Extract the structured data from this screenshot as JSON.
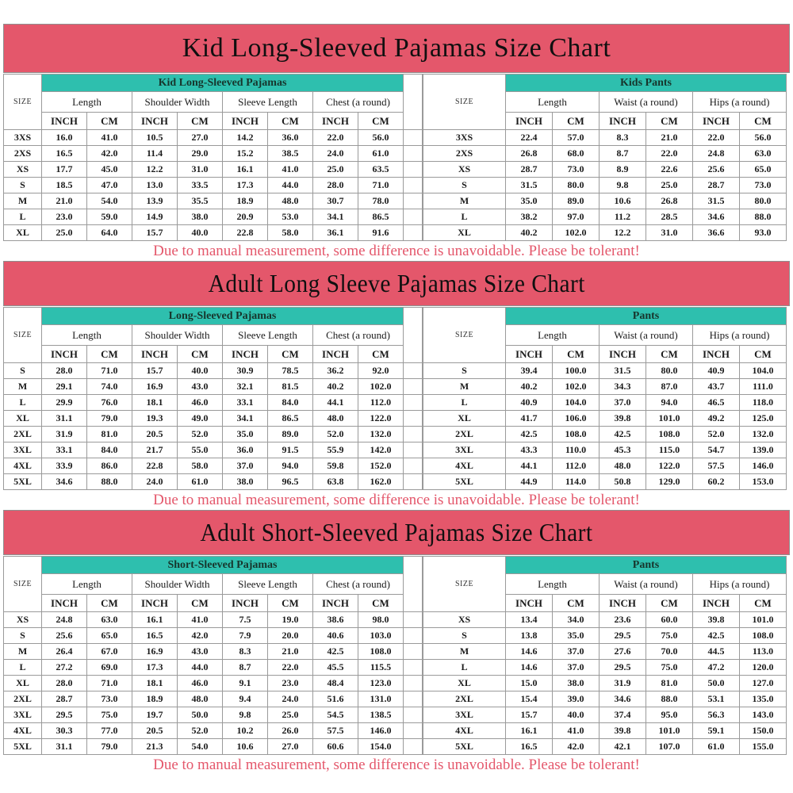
{
  "colors": {
    "banner": "#e4576b",
    "teal": "#2ebfae",
    "disclaimer_text": "#e4576b",
    "title_text": "#101010",
    "grid_line": "#9a9a9a"
  },
  "labels": {
    "size": "SIZE",
    "inch": "INCH",
    "cm": "CM"
  },
  "disclaimer": "Due to manual measurement, some difference is unavoidable. Please be tolerant!",
  "sections": [
    {
      "title": "Kid Long-Sleeved Pajamas Size Chart",
      "left": {
        "slug": "kid-long-sleeved-pajamas",
        "header": "Kid Long-Sleeved Pajamas",
        "groups": [
          "Length",
          "Shoulder Width",
          "Sleeve Length",
          "Chest (a round)"
        ],
        "rows": [
          [
            "3XS",
            "16.0",
            "41.0",
            "10.5",
            "27.0",
            "14.2",
            "36.0",
            "22.0",
            "56.0"
          ],
          [
            "2XS",
            "16.5",
            "42.0",
            "11.4",
            "29.0",
            "15.2",
            "38.5",
            "24.0",
            "61.0"
          ],
          [
            "XS",
            "17.7",
            "45.0",
            "12.2",
            "31.0",
            "16.1",
            "41.0",
            "25.0",
            "63.5"
          ],
          [
            "S",
            "18.5",
            "47.0",
            "13.0",
            "33.5",
            "17.3",
            "44.0",
            "28.0",
            "71.0"
          ],
          [
            "M",
            "21.0",
            "54.0",
            "13.9",
            "35.5",
            "18.9",
            "48.0",
            "30.7",
            "78.0"
          ],
          [
            "L",
            "23.0",
            "59.0",
            "14.9",
            "38.0",
            "20.9",
            "53.0",
            "34.1",
            "86.5"
          ],
          [
            "XL",
            "25.0",
            "64.0",
            "15.7",
            "40.0",
            "22.8",
            "58.0",
            "36.1",
            "91.6"
          ]
        ]
      },
      "right": {
        "slug": "kids-pants",
        "header": "Kids Pants",
        "groups": [
          "Length",
          "Waist (a round)",
          "Hips (a round)"
        ],
        "rows": [
          [
            "3XS",
            "22.4",
            "57.0",
            "8.3",
            "21.0",
            "22.0",
            "56.0"
          ],
          [
            "2XS",
            "26.8",
            "68.0",
            "8.7",
            "22.0",
            "24.8",
            "63.0"
          ],
          [
            "XS",
            "28.7",
            "73.0",
            "8.9",
            "22.6",
            "25.6",
            "65.0"
          ],
          [
            "S",
            "31.5",
            "80.0",
            "9.8",
            "25.0",
            "28.7",
            "73.0"
          ],
          [
            "M",
            "35.0",
            "89.0",
            "10.6",
            "26.8",
            "31.5",
            "80.0"
          ],
          [
            "L",
            "38.2",
            "97.0",
            "11.2",
            "28.5",
            "34.6",
            "88.0"
          ],
          [
            "XL",
            "40.2",
            "102.0",
            "12.2",
            "31.0",
            "36.6",
            "93.0"
          ]
        ]
      }
    },
    {
      "title": "Adult Long Sleeve Pajamas Size Chart",
      "left": {
        "slug": "long-sleeved-pajamas",
        "header": "Long-Sleeved Pajamas",
        "groups": [
          "Length",
          "Shoulder Width",
          "Sleeve Length",
          "Chest (a round)"
        ],
        "rows": [
          [
            "S",
            "28.0",
            "71.0",
            "15.7",
            "40.0",
            "30.9",
            "78.5",
            "36.2",
            "92.0"
          ],
          [
            "M",
            "29.1",
            "74.0",
            "16.9",
            "43.0",
            "32.1",
            "81.5",
            "40.2",
            "102.0"
          ],
          [
            "L",
            "29.9",
            "76.0",
            "18.1",
            "46.0",
            "33.1",
            "84.0",
            "44.1",
            "112.0"
          ],
          [
            "XL",
            "31.1",
            "79.0",
            "19.3",
            "49.0",
            "34.1",
            "86.5",
            "48.0",
            "122.0"
          ],
          [
            "2XL",
            "31.9",
            "81.0",
            "20.5",
            "52.0",
            "35.0",
            "89.0",
            "52.0",
            "132.0"
          ],
          [
            "3XL",
            "33.1",
            "84.0",
            "21.7",
            "55.0",
            "36.0",
            "91.5",
            "55.9",
            "142.0"
          ],
          [
            "4XL",
            "33.9",
            "86.0",
            "22.8",
            "58.0",
            "37.0",
            "94.0",
            "59.8",
            "152.0"
          ],
          [
            "5XL",
            "34.6",
            "88.0",
            "24.0",
            "61.0",
            "38.0",
            "96.5",
            "63.8",
            "162.0"
          ]
        ]
      },
      "right": {
        "slug": "adult-long-sleeve-pants",
        "header": "Pants",
        "groups": [
          "Length",
          "Waist (a round)",
          "Hips (a round)"
        ],
        "rows": [
          [
            "S",
            "39.4",
            "100.0",
            "31.5",
            "80.0",
            "40.9",
            "104.0"
          ],
          [
            "M",
            "40.2",
            "102.0",
            "34.3",
            "87.0",
            "43.7",
            "111.0"
          ],
          [
            "L",
            "40.9",
            "104.0",
            "37.0",
            "94.0",
            "46.5",
            "118.0"
          ],
          [
            "XL",
            "41.7",
            "106.0",
            "39.8",
            "101.0",
            "49.2",
            "125.0"
          ],
          [
            "2XL",
            "42.5",
            "108.0",
            "42.5",
            "108.0",
            "52.0",
            "132.0"
          ],
          [
            "3XL",
            "43.3",
            "110.0",
            "45.3",
            "115.0",
            "54.7",
            "139.0"
          ],
          [
            "4XL",
            "44.1",
            "112.0",
            "48.0",
            "122.0",
            "57.5",
            "146.0"
          ],
          [
            "5XL",
            "44.9",
            "114.0",
            "50.8",
            "129.0",
            "60.2",
            "153.0"
          ]
        ]
      }
    },
    {
      "title": "Adult Short-Sleeved Pajamas Size Chart",
      "left": {
        "slug": "short-sleeved-pajamas",
        "header": "Short-Sleeved Pajamas",
        "groups": [
          "Length",
          "Shoulder Width",
          "Sleeve Length",
          "Chest (a round)"
        ],
        "rows": [
          [
            "XS",
            "24.8",
            "63.0",
            "16.1",
            "41.0",
            "7.5",
            "19.0",
            "38.6",
            "98.0"
          ],
          [
            "S",
            "25.6",
            "65.0",
            "16.5",
            "42.0",
            "7.9",
            "20.0",
            "40.6",
            "103.0"
          ],
          [
            "M",
            "26.4",
            "67.0",
            "16.9",
            "43.0",
            "8.3",
            "21.0",
            "42.5",
            "108.0"
          ],
          [
            "L",
            "27.2",
            "69.0",
            "17.3",
            "44.0",
            "8.7",
            "22.0",
            "45.5",
            "115.5"
          ],
          [
            "XL",
            "28.0",
            "71.0",
            "18.1",
            "46.0",
            "9.1",
            "23.0",
            "48.4",
            "123.0"
          ],
          [
            "2XL",
            "28.7",
            "73.0",
            "18.9",
            "48.0",
            "9.4",
            "24.0",
            "51.6",
            "131.0"
          ],
          [
            "3XL",
            "29.5",
            "75.0",
            "19.7",
            "50.0",
            "9.8",
            "25.0",
            "54.5",
            "138.5"
          ],
          [
            "4XL",
            "30.3",
            "77.0",
            "20.5",
            "52.0",
            "10.2",
            "26.0",
            "57.5",
            "146.0"
          ],
          [
            "5XL",
            "31.1",
            "79.0",
            "21.3",
            "54.0",
            "10.6",
            "27.0",
            "60.6",
            "154.0"
          ]
        ]
      },
      "right": {
        "slug": "adult-short-sleeve-pants",
        "header": "Pants",
        "groups": [
          "Length",
          "Waist (a round)",
          "Hips (a round)"
        ],
        "rows": [
          [
            "XS",
            "13.4",
            "34.0",
            "23.6",
            "60.0",
            "39.8",
            "101.0"
          ],
          [
            "S",
            "13.8",
            "35.0",
            "29.5",
            "75.0",
            "42.5",
            "108.0"
          ],
          [
            "M",
            "14.6",
            "37.0",
            "27.6",
            "70.0",
            "44.5",
            "113.0"
          ],
          [
            "L",
            "14.6",
            "37.0",
            "29.5",
            "75.0",
            "47.2",
            "120.0"
          ],
          [
            "XL",
            "15.0",
            "38.0",
            "31.9",
            "81.0",
            "50.0",
            "127.0"
          ],
          [
            "2XL",
            "15.4",
            "39.0",
            "34.6",
            "88.0",
            "53.1",
            "135.0"
          ],
          [
            "3XL",
            "15.7",
            "40.0",
            "37.4",
            "95.0",
            "56.3",
            "143.0"
          ],
          [
            "4XL",
            "16.1",
            "41.0",
            "39.8",
            "101.0",
            "59.1",
            "150.0"
          ],
          [
            "5XL",
            "16.5",
            "42.0",
            "42.1",
            "107.0",
            "61.0",
            "155.0"
          ]
        ]
      }
    }
  ]
}
